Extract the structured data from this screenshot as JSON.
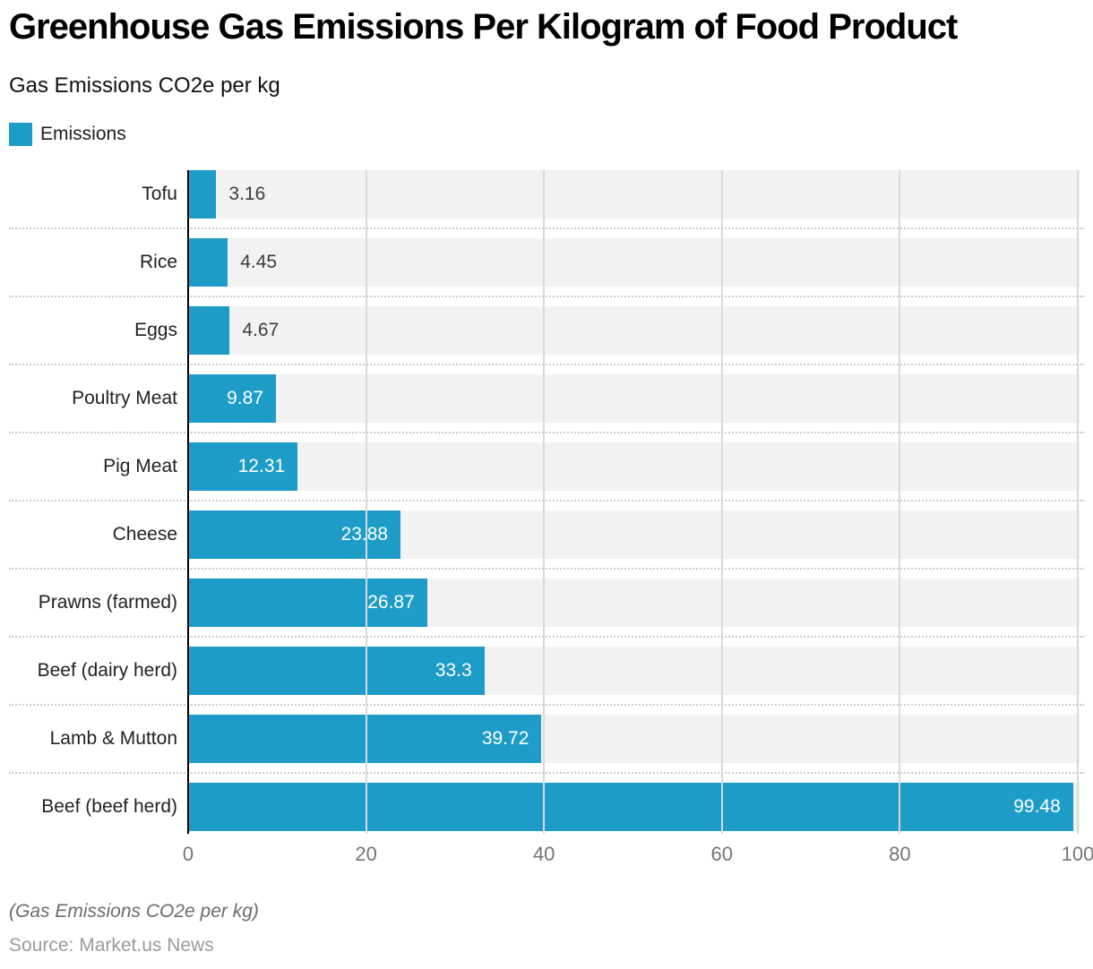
{
  "chart_data": {
    "type": "bar",
    "orientation": "horizontal",
    "title": "Greenhouse Gas Emissions Per Kilogram of Food Product",
    "subtitle": "Gas Emissions CO2e per kg",
    "legend": [
      {
        "label": "Emissions"
      }
    ],
    "categories": [
      "Tofu",
      "Rice",
      "Eggs",
      "Poultry Meat",
      "Pig Meat",
      "Cheese",
      "Prawns (farmed)",
      "Beef (dairy herd)",
      "Lamb & Mutton",
      "Beef (beef herd)"
    ],
    "values": [
      3.16,
      4.45,
      4.67,
      9.87,
      12.31,
      23.88,
      26.87,
      33.3,
      39.72,
      99.48
    ],
    "value_labels": [
      "3.16",
      "4.45",
      "4.67",
      "9.87",
      "12.31",
      "23.88",
      "26.87",
      "33.3",
      "39.72",
      "99.48"
    ],
    "xlim": [
      0,
      100
    ],
    "xticks": [
      0,
      20,
      40,
      60,
      80,
      100
    ],
    "grid": "vertical-solid, row-bands, dotted-row-separators",
    "legend_position": "top-left",
    "footnote": "(Gas Emissions CO2e per kg)",
    "source": "Source: Market.us News"
  },
  "colors": {
    "bar": "#1E9CC8",
    "row_band": "#F2F2F2",
    "gridline": "#D9D9D9",
    "separator": "#CCCCCC",
    "axis_line": "#000000",
    "tick_label": "#757575",
    "category_label": "#212121",
    "value_outside": "#3C3C3C",
    "value_inside": "#FFFFFF"
  }
}
